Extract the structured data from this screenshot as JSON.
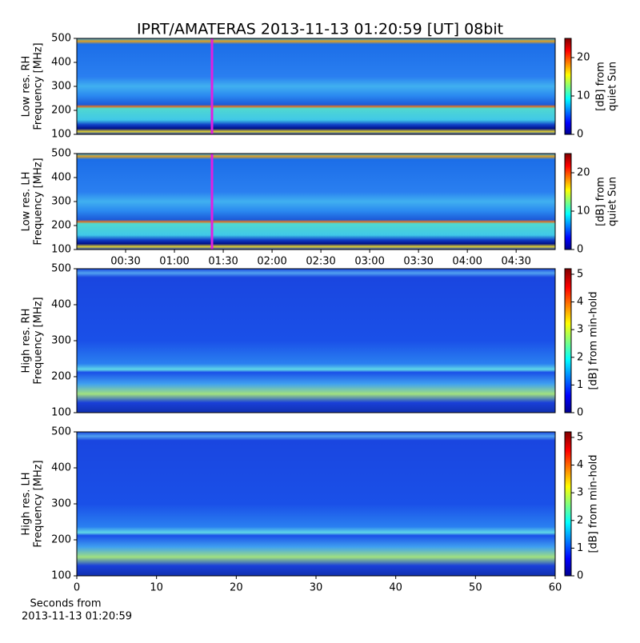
{
  "title": "IPRT/AMATERAS 2013-11-13 01:20:59 [UT]   08bit",
  "chart_data": [
    {
      "type": "heatmap",
      "ylabel": [
        "Low res. RH",
        "Frequency [MHz]"
      ],
      "ylim": [
        100,
        500
      ],
      "yticks": [
        100,
        200,
        300,
        400,
        500
      ],
      "xlim": [
        0,
        294
      ],
      "colorbar": {
        "label": [
          "[dB] from",
          "quiet Sun"
        ],
        "lim": [
          0,
          25
        ],
        "ticks": [
          0,
          10,
          20
        ]
      }
    },
    {
      "type": "heatmap",
      "ylabel": [
        "Low res. LH",
        "Frequency [MHz]"
      ],
      "ylim": [
        100,
        500
      ],
      "yticks": [
        100,
        200,
        300,
        400,
        500
      ],
      "xlim": [
        0,
        294
      ],
      "xticks": [
        {
          "value": 30,
          "label": "00:30"
        },
        {
          "value": 60,
          "label": "01:00"
        },
        {
          "value": 90,
          "label": "01:30"
        },
        {
          "value": 120,
          "label": "02:00"
        },
        {
          "value": 150,
          "label": "02:30"
        },
        {
          "value": 180,
          "label": "03:00"
        },
        {
          "value": 210,
          "label": "03:30"
        },
        {
          "value": 240,
          "label": "04:00"
        },
        {
          "value": 270,
          "label": "04:30"
        }
      ],
      "colorbar": {
        "label": [
          "[dB] from",
          "quiet Sun"
        ],
        "lim": [
          0,
          25
        ],
        "ticks": [
          0,
          10,
          20
        ]
      }
    },
    {
      "type": "heatmap",
      "ylabel": [
        "High res. RH",
        "Frequency [MHz]"
      ],
      "ylim": [
        100,
        500
      ],
      "yticks": [
        100,
        200,
        300,
        400,
        500
      ],
      "xlim": [
        0,
        60
      ],
      "colorbar": {
        "label": [
          "[dB] from min-hold"
        ],
        "lim": [
          0,
          5.2
        ],
        "ticks": [
          0,
          1,
          2,
          3,
          4,
          5
        ]
      }
    },
    {
      "type": "heatmap",
      "ylabel": [
        "High res. LH",
        "Frequency [MHz]"
      ],
      "ylim": [
        100,
        500
      ],
      "yticks": [
        100,
        200,
        300,
        400,
        500
      ],
      "xlim": [
        0,
        60
      ],
      "xticks": [
        0,
        10,
        20,
        30,
        40,
        50,
        60
      ],
      "xlabel": [
        "Seconds from",
        "2013-11-13 01:20:59"
      ],
      "colorbar": {
        "label": [
          "[dB] from min-hold"
        ],
        "lim": [
          0,
          5.2
        ],
        "ticks": [
          0,
          1,
          2,
          3,
          4,
          5
        ]
      }
    }
  ]
}
